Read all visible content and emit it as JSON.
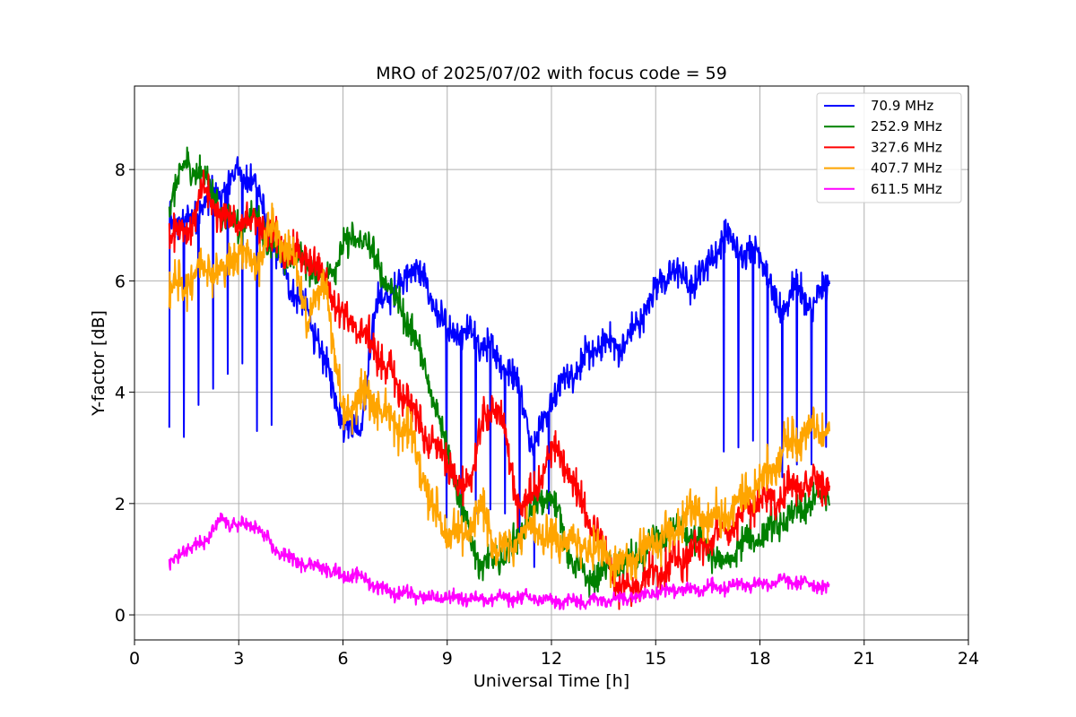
{
  "chart_data": {
    "type": "line",
    "title": "MRO of 2025/07/02 with focus code = 59",
    "xlabel": "Universal Time [h]",
    "ylabel": "Y-factor [dB]",
    "xlim": [
      0,
      24
    ],
    "ylim": [
      -0.45,
      9.5
    ],
    "xticks": [
      0,
      3,
      6,
      9,
      12,
      15,
      18,
      21,
      24
    ],
    "yticks": [
      0,
      2,
      4,
      6,
      8
    ],
    "grid": true,
    "legend_position": "top-right",
    "series": [
      {
        "name": " 70.9 MHz",
        "color": "#0000ff",
        "x": [
          1.0,
          1.5,
          2.0,
          2.5,
          3.0,
          3.5,
          4.0,
          4.5,
          5.0,
          5.5,
          6.0,
          6.5,
          7.0,
          7.5,
          8.0,
          8.5,
          9.0,
          9.5,
          10.0,
          10.5,
          11.0,
          11.5,
          12.0,
          12.5,
          13.0,
          13.5,
          14.0,
          14.5,
          15.0,
          15.5,
          16.0,
          16.5,
          17.0,
          17.5,
          18.0,
          18.5,
          19.0,
          19.5,
          20.0
        ],
        "values": [
          7.1,
          7.0,
          7.4,
          7.6,
          8.0,
          7.7,
          6.6,
          5.9,
          5.4,
          4.5,
          3.5,
          3.3,
          5.7,
          5.8,
          6.3,
          5.8,
          5.0,
          5.1,
          4.9,
          4.6,
          4.2,
          3.0,
          3.9,
          4.3,
          4.6,
          4.9,
          4.8,
          5.2,
          5.9,
          6.2,
          5.9,
          6.3,
          6.8,
          6.5,
          6.6,
          5.4,
          5.9,
          5.5,
          6.0
        ],
        "dip_min": [
          3.3,
          3.1,
          4.0,
          3.9,
          4.8,
          3.3,
          3.2,
          3.0,
          2.7,
          1.6,
          0.9,
          1.4,
          2.8,
          2.6,
          2.8,
          2.3,
          1.7,
          1.6,
          1.7,
          1.8,
          1.5,
          0.7,
          1.8,
          1.7,
          1.9,
          1.8,
          2.0,
          1.9,
          2.0,
          2.3,
          2.5,
          2.7,
          2.9,
          3.0,
          2.9,
          2.3,
          2.7,
          2.6,
          2.9
        ]
      },
      {
        "name": "252.9 MHz",
        "color": "#008000",
        "x": [
          1.0,
          1.5,
          2.0,
          2.5,
          3.0,
          3.5,
          4.0,
          4.5,
          5.0,
          5.5,
          6.0,
          6.5,
          7.0,
          7.5,
          8.0,
          8.5,
          9.0,
          9.5,
          10.0,
          10.5,
          11.0,
          11.5,
          12.0,
          12.5,
          13.0,
          13.5,
          14.0,
          14.5,
          15.0,
          15.5,
          16.0,
          16.5,
          17.0,
          17.5,
          18.0,
          18.5,
          19.0,
          19.5,
          20.0
        ],
        "values": [
          7.5,
          8.1,
          7.9,
          7.2,
          7.0,
          7.1,
          6.6,
          6.4,
          6.3,
          6.0,
          6.6,
          6.8,
          6.3,
          5.7,
          5.1,
          4.1,
          3.0,
          1.7,
          0.9,
          1.0,
          1.3,
          1.9,
          2.2,
          1.1,
          0.6,
          0.8,
          0.9,
          1.0,
          1.3,
          1.6,
          1.4,
          1.2,
          0.9,
          1.3,
          1.4,
          1.6,
          1.8,
          2.0,
          2.2
        ]
      },
      {
        "name": "327.6 MHz",
        "color": "#ff0000",
        "x": [
          1.0,
          1.5,
          2.0,
          2.5,
          3.0,
          3.5,
          4.0,
          4.5,
          5.0,
          5.5,
          6.0,
          6.5,
          7.0,
          7.5,
          8.0,
          8.5,
          9.0,
          9.5,
          10.0,
          10.5,
          11.0,
          11.5,
          12.0,
          12.5,
          13.0,
          13.5,
          14.0,
          14.5,
          15.0,
          15.5,
          16.0,
          16.5,
          17.0,
          17.5,
          18.0,
          18.5,
          19.0,
          19.5,
          20.0
        ],
        "values": [
          6.9,
          6.9,
          7.6,
          7.2,
          7.0,
          7.1,
          6.8,
          6.5,
          6.4,
          6.0,
          5.4,
          5.1,
          4.7,
          4.2,
          3.7,
          3.1,
          2.8,
          2.1,
          3.4,
          3.8,
          2.0,
          2.1,
          3.0,
          2.6,
          1.8,
          1.2,
          0.4,
          0.6,
          0.8,
          0.9,
          1.1,
          1.3,
          1.5,
          1.8,
          2.1,
          2.1,
          2.3,
          2.3,
          2.4
        ]
      },
      {
        "name": "407.7 MHz",
        "color": "#ffa500",
        "x": [
          1.0,
          1.5,
          2.0,
          2.5,
          3.0,
          3.5,
          4.0,
          4.5,
          5.0,
          5.5,
          6.0,
          6.5,
          7.0,
          7.5,
          8.0,
          8.5,
          9.0,
          9.5,
          10.0,
          10.5,
          11.0,
          11.5,
          12.0,
          12.5,
          13.0,
          13.5,
          14.0,
          14.5,
          15.0,
          15.5,
          16.0,
          16.5,
          17.0,
          17.5,
          18.0,
          18.5,
          19.0,
          19.5,
          20.0
        ],
        "values": [
          5.8,
          6.0,
          6.3,
          6.1,
          6.6,
          6.3,
          7.0,
          6.5,
          5.3,
          6.0,
          3.5,
          4.0,
          3.8,
          3.4,
          3.2,
          2.0,
          1.5,
          1.4,
          1.9,
          1.1,
          1.4,
          1.6,
          1.3,
          1.4,
          1.2,
          1.1,
          0.9,
          1.1,
          1.3,
          1.5,
          1.9,
          1.7,
          1.8,
          2.1,
          2.4,
          2.8,
          3.2,
          3.3,
          3.3
        ]
      },
      {
        "name": "611.5 MHz",
        "color": "#ff00ff",
        "x": [
          1.0,
          1.5,
          2.0,
          2.5,
          3.0,
          3.5,
          4.0,
          4.5,
          5.0,
          5.5,
          6.0,
          6.5,
          7.0,
          7.5,
          8.0,
          8.5,
          9.0,
          9.5,
          10.0,
          10.5,
          11.0,
          11.5,
          12.0,
          12.5,
          13.0,
          13.5,
          14.0,
          14.5,
          15.0,
          15.5,
          16.0,
          16.5,
          17.0,
          17.5,
          18.0,
          18.5,
          19.0,
          19.5,
          20.0
        ],
        "values": [
          0.9,
          1.2,
          1.3,
          1.7,
          1.6,
          1.6,
          1.2,
          1.0,
          0.9,
          0.85,
          0.7,
          0.7,
          0.5,
          0.4,
          0.35,
          0.3,
          0.3,
          0.3,
          0.3,
          0.3,
          0.3,
          0.3,
          0.25,
          0.25,
          0.25,
          0.3,
          0.3,
          0.35,
          0.4,
          0.45,
          0.45,
          0.5,
          0.5,
          0.55,
          0.55,
          0.6,
          0.6,
          0.55,
          0.5
        ]
      }
    ]
  }
}
